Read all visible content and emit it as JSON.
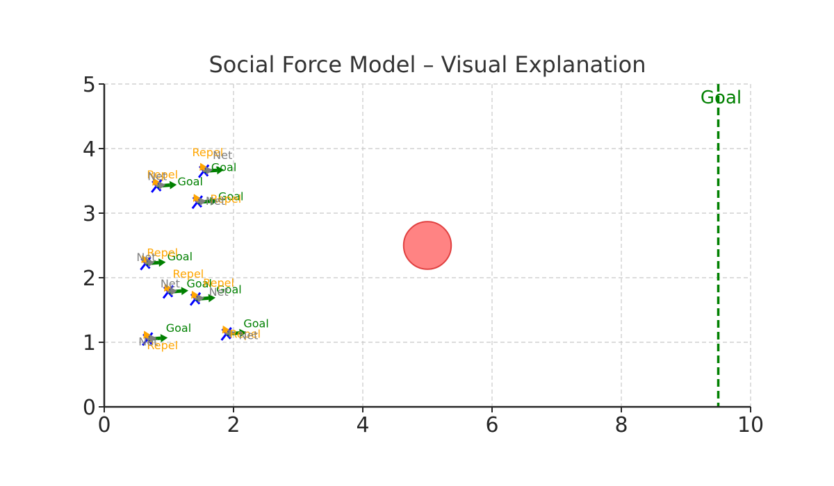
{
  "chart_data": {
    "type": "scatter",
    "title": "Social Force Model – Visual Explanation",
    "xlabel": "",
    "ylabel": "",
    "xlim": [
      0,
      10
    ],
    "ylim": [
      0,
      5
    ],
    "xticks": [
      "0",
      "2",
      "4",
      "6",
      "8",
      "10"
    ],
    "yticks": [
      "0",
      "1",
      "2",
      "3",
      "4",
      "5"
    ],
    "grid": true,
    "obstacle": {
      "x": 5.0,
      "y": 2.5,
      "radius": 0.4,
      "color": "#ff5a5a"
    },
    "goal_line": {
      "x": 9.5,
      "label": "Goal",
      "color": "#008000"
    },
    "arrow_labels": {
      "goal": "Goal",
      "repel": "Repel",
      "net": "Net"
    },
    "colors": {
      "goal": "#008000",
      "repel": "#ffa500",
      "net": "#808080",
      "agent": "#0000ff"
    },
    "agents": [
      {
        "x": 1.55,
        "y": 3.65,
        "goal_label": [
          1.85,
          3.65
        ],
        "repel_label": [
          1.6,
          3.88
        ],
        "net_label": [
          1.83,
          3.84
        ]
      },
      {
        "x": 0.82,
        "y": 3.42,
        "goal_label": [
          1.33,
          3.43
        ],
        "repel_label": [
          0.9,
          3.54
        ],
        "net_label": [
          0.82,
          3.51
        ]
      },
      {
        "x": 1.45,
        "y": 3.17,
        "goal_label": [
          1.96,
          3.2
        ],
        "repel_label": [
          1.88,
          3.16
        ],
        "net_label": [
          1.72,
          3.13
        ]
      },
      {
        "x": 0.65,
        "y": 2.22,
        "goal_label": [
          1.17,
          2.27
        ],
        "repel_label": [
          0.9,
          2.33
        ],
        "net_label": [
          0.65,
          2.26
        ]
      },
      {
        "x": 1.0,
        "y": 1.78,
        "goal_label": [
          1.47,
          1.85
        ],
        "repel_label": [
          1.3,
          2.0
        ],
        "net_label": [
          1.02,
          1.85
        ]
      },
      {
        "x": 1.42,
        "y": 1.67,
        "goal_label": [
          1.93,
          1.76
        ],
        "repel_label": [
          1.77,
          1.86
        ],
        "net_label": [
          1.77,
          1.72
        ]
      },
      {
        "x": 1.9,
        "y": 1.13,
        "goal_label": [
          2.35,
          1.23
        ],
        "repel_label": [
          2.18,
          1.07
        ],
        "net_label": [
          2.23,
          1.05
        ]
      },
      {
        "x": 0.68,
        "y": 1.05,
        "goal_label": [
          1.15,
          1.16
        ],
        "repel_label": [
          0.9,
          0.89
        ],
        "net_label": [
          0.68,
          0.95
        ]
      }
    ]
  }
}
